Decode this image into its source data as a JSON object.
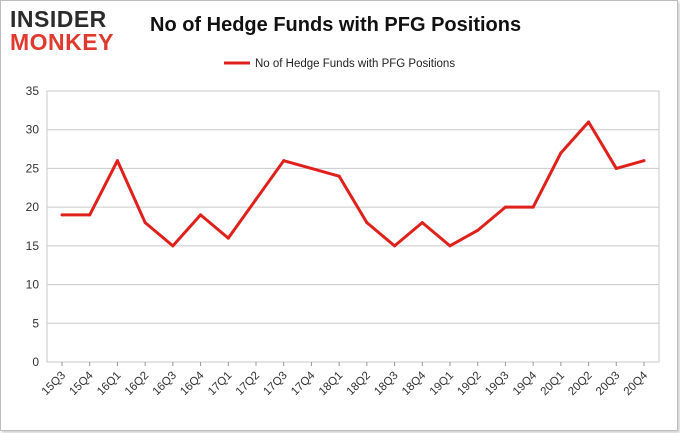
{
  "logo": {
    "line1": "INSIDER",
    "line2": "MONKEY"
  },
  "chart_data": {
    "type": "line",
    "title": "No of Hedge Funds with PFG Positions",
    "categories": [
      "15Q3",
      "15Q4",
      "16Q1",
      "16Q2",
      "16Q3",
      "16Q4",
      "17Q1",
      "17Q2",
      "17Q3",
      "17Q4",
      "18Q1",
      "18Q2",
      "18Q3",
      "18Q4",
      "19Q1",
      "19Q2",
      "19Q3",
      "19Q4",
      "20Q1",
      "20Q2",
      "20Q3",
      "20Q4"
    ],
    "series": [
      {
        "name": "No of Hedge Funds with PFG Positions",
        "values": [
          19,
          19,
          26,
          18,
          15,
          19,
          16,
          21,
          26,
          25,
          24,
          18,
          15,
          18,
          15,
          17,
          20,
          20,
          27,
          31,
          25,
          26
        ]
      }
    ],
    "ylim": [
      0,
      35
    ],
    "yticks": [
      0,
      5,
      10,
      15,
      20,
      25,
      30,
      35
    ],
    "grid": true,
    "legend": "top",
    "line_color": "#e0201b"
  }
}
